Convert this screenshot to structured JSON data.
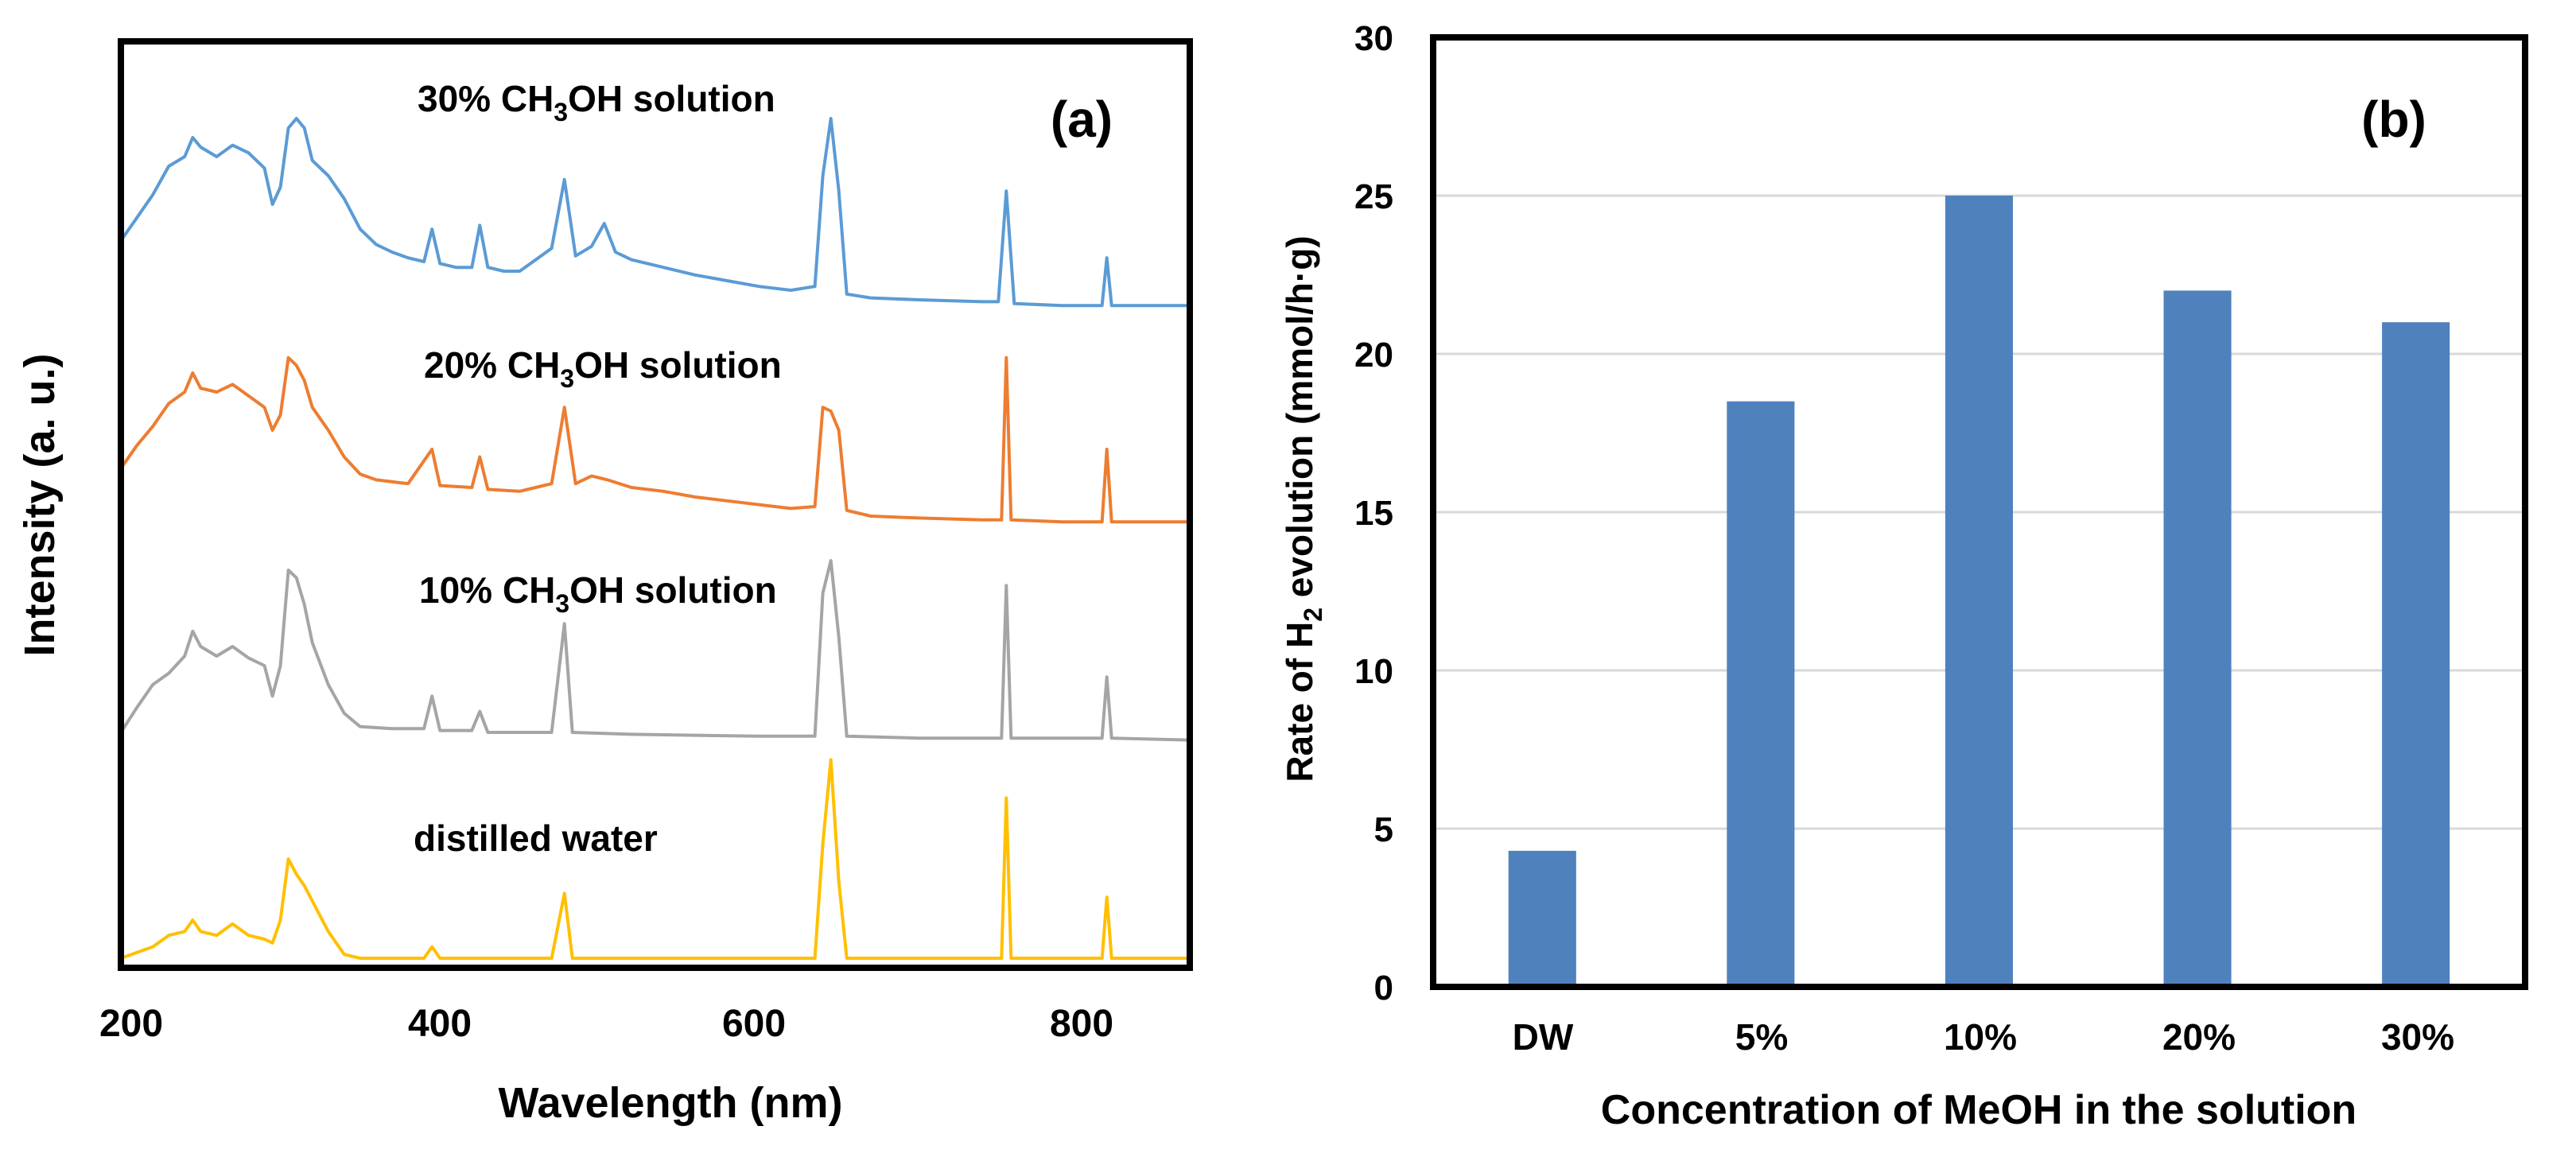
{
  "chart_data": [
    {
      "type": "line",
      "panel_label": "(a)",
      "xlabel": "Wavelength (nm)",
      "ylabel": "Intensity (a. u.)",
      "xlim": [
        200,
        870
      ],
      "x_ticks": [
        "200",
        "400",
        "600",
        "800"
      ],
      "y_ticks_shown": false,
      "colors": [
        "#5b9bd5",
        "#ed7d31",
        "#a5a5a5",
        "#ffc000"
      ],
      "series": [
        {
          "name": "30% CH3OH solution",
          "label_prefix": "30% CH",
          "label_sub": "3",
          "label_suffix": "OH solution",
          "offset": 3,
          "points": [
            [
              200,
              0.36
            ],
            [
              210,
              0.48
            ],
            [
              220,
              0.6
            ],
            [
              230,
              0.75
            ],
            [
              240,
              0.8
            ],
            [
              245,
              0.9
            ],
            [
              250,
              0.85
            ],
            [
              260,
              0.8
            ],
            [
              270,
              0.86
            ],
            [
              280,
              0.82
            ],
            [
              290,
              0.74
            ],
            [
              295,
              0.55
            ],
            [
              300,
              0.64
            ],
            [
              305,
              0.95
            ],
            [
              310,
              1.0
            ],
            [
              315,
              0.95
            ],
            [
              320,
              0.78
            ],
            [
              330,
              0.7
            ],
            [
              340,
              0.58
            ],
            [
              350,
              0.42
            ],
            [
              360,
              0.34
            ],
            [
              370,
              0.3
            ],
            [
              380,
              0.27
            ],
            [
              390,
              0.25
            ],
            [
              395,
              0.42
            ],
            [
              400,
              0.24
            ],
            [
              410,
              0.22
            ],
            [
              420,
              0.22
            ],
            [
              425,
              0.44
            ],
            [
              430,
              0.22
            ],
            [
              440,
              0.2
            ],
            [
              450,
              0.2
            ],
            [
              460,
              0.26
            ],
            [
              470,
              0.32
            ],
            [
              478,
              0.68
            ],
            [
              485,
              0.28
            ],
            [
              495,
              0.33
            ],
            [
              503,
              0.45
            ],
            [
              510,
              0.3
            ],
            [
              520,
              0.26
            ],
            [
              540,
              0.22
            ],
            [
              560,
              0.18
            ],
            [
              580,
              0.15
            ],
            [
              600,
              0.12
            ],
            [
              620,
              0.1
            ],
            [
              635,
              0.12
            ],
            [
              640,
              0.7
            ],
            [
              645,
              1.0
            ],
            [
              650,
              0.62
            ],
            [
              655,
              0.08
            ],
            [
              670,
              0.06
            ],
            [
              700,
              0.05
            ],
            [
              740,
              0.04
            ],
            [
              750,
              0.04
            ],
            [
              755,
              0.62
            ],
            [
              760,
              0.03
            ],
            [
              790,
              0.02
            ],
            [
              815,
              0.02
            ],
            [
              818,
              0.27
            ],
            [
              821,
              0.02
            ],
            [
              850,
              0.02
            ],
            [
              870,
              0.02
            ]
          ]
        },
        {
          "name": "20% CH3OH solution",
          "label_prefix": "20% CH",
          "label_sub": "3",
          "label_suffix": "OH solution",
          "offset": 2,
          "points": [
            [
              200,
              0.3
            ],
            [
              210,
              0.42
            ],
            [
              220,
              0.52
            ],
            [
              230,
              0.64
            ],
            [
              240,
              0.7
            ],
            [
              245,
              0.8
            ],
            [
              250,
              0.72
            ],
            [
              260,
              0.7
            ],
            [
              270,
              0.74
            ],
            [
              280,
              0.68
            ],
            [
              290,
              0.62
            ],
            [
              295,
              0.5
            ],
            [
              300,
              0.58
            ],
            [
              305,
              0.88
            ],
            [
              310,
              0.84
            ],
            [
              315,
              0.76
            ],
            [
              320,
              0.62
            ],
            [
              330,
              0.5
            ],
            [
              340,
              0.36
            ],
            [
              350,
              0.27
            ],
            [
              360,
              0.24
            ],
            [
              380,
              0.22
            ],
            [
              395,
              0.4
            ],
            [
              400,
              0.21
            ],
            [
              420,
              0.2
            ],
            [
              425,
              0.36
            ],
            [
              430,
              0.19
            ],
            [
              450,
              0.18
            ],
            [
              460,
              0.2
            ],
            [
              470,
              0.22
            ],
            [
              478,
              0.62
            ],
            [
              485,
              0.22
            ],
            [
              495,
              0.26
            ],
            [
              505,
              0.24
            ],
            [
              520,
              0.2
            ],
            [
              540,
              0.18
            ],
            [
              560,
              0.15
            ],
            [
              580,
              0.13
            ],
            [
              600,
              0.11
            ],
            [
              620,
              0.09
            ],
            [
              635,
              0.1
            ],
            [
              640,
              0.62
            ],
            [
              645,
              0.6
            ],
            [
              650,
              0.5
            ],
            [
              655,
              0.08
            ],
            [
              670,
              0.05
            ],
            [
              700,
              0.04
            ],
            [
              740,
              0.03
            ],
            [
              752,
              0.03
            ],
            [
              755,
              0.88
            ],
            [
              758,
              0.03
            ],
            [
              790,
              0.02
            ],
            [
              815,
              0.02
            ],
            [
              818,
              0.4
            ],
            [
              821,
              0.02
            ],
            [
              850,
              0.02
            ],
            [
              870,
              0.02
            ]
          ]
        },
        {
          "name": "10% CH3OH solution",
          "label_prefix": "10% CH",
          "label_sub": "3",
          "label_suffix": "OH solution",
          "offset": 1,
          "points": [
            [
              200,
              0.05
            ],
            [
              210,
              0.18
            ],
            [
              220,
              0.3
            ],
            [
              230,
              0.36
            ],
            [
              240,
              0.45
            ],
            [
              245,
              0.58
            ],
            [
              250,
              0.5
            ],
            [
              260,
              0.45
            ],
            [
              270,
              0.5
            ],
            [
              280,
              0.44
            ],
            [
              290,
              0.4
            ],
            [
              295,
              0.24
            ],
            [
              300,
              0.4
            ],
            [
              305,
              0.9
            ],
            [
              310,
              0.86
            ],
            [
              315,
              0.72
            ],
            [
              320,
              0.52
            ],
            [
              330,
              0.3
            ],
            [
              340,
              0.15
            ],
            [
              350,
              0.08
            ],
            [
              370,
              0.07
            ],
            [
              390,
              0.07
            ],
            [
              395,
              0.24
            ],
            [
              400,
              0.06
            ],
            [
              420,
              0.06
            ],
            [
              425,
              0.16
            ],
            [
              430,
              0.05
            ],
            [
              470,
              0.05
            ],
            [
              478,
              0.62
            ],
            [
              483,
              0.05
            ],
            [
              520,
              0.04
            ],
            [
              600,
              0.03
            ],
            [
              635,
              0.03
            ],
            [
              640,
              0.78
            ],
            [
              645,
              0.95
            ],
            [
              650,
              0.55
            ],
            [
              655,
              0.03
            ],
            [
              700,
              0.02
            ],
            [
              752,
              0.02
            ],
            [
              755,
              0.82
            ],
            [
              758,
              0.02
            ],
            [
              815,
              0.02
            ],
            [
              818,
              0.34
            ],
            [
              821,
              0.02
            ],
            [
              870,
              0.01
            ]
          ]
        },
        {
          "name": "distilled water",
          "label_prefix": "distilled water",
          "label_sub": "",
          "label_suffix": "",
          "offset": 0,
          "points": [
            [
              200,
              0.0
            ],
            [
              210,
              0.03
            ],
            [
              220,
              0.06
            ],
            [
              230,
              0.12
            ],
            [
              240,
              0.14
            ],
            [
              245,
              0.2
            ],
            [
              250,
              0.14
            ],
            [
              260,
              0.12
            ],
            [
              270,
              0.18
            ],
            [
              280,
              0.12
            ],
            [
              290,
              0.1
            ],
            [
              295,
              0.08
            ],
            [
              300,
              0.2
            ],
            [
              305,
              0.52
            ],
            [
              310,
              0.44
            ],
            [
              315,
              0.38
            ],
            [
              320,
              0.3
            ],
            [
              330,
              0.14
            ],
            [
              340,
              0.02
            ],
            [
              350,
              0.0
            ],
            [
              390,
              0.0
            ],
            [
              395,
              0.06
            ],
            [
              400,
              0.0
            ],
            [
              470,
              0.0
            ],
            [
              478,
              0.34
            ],
            [
              483,
              0.0
            ],
            [
              600,
              0.0
            ],
            [
              635,
              0.0
            ],
            [
              640,
              0.6
            ],
            [
              645,
              1.04
            ],
            [
              650,
              0.4
            ],
            [
              655,
              0.0
            ],
            [
              752,
              0.0
            ],
            [
              755,
              0.84
            ],
            [
              758,
              0.0
            ],
            [
              815,
              0.0
            ],
            [
              818,
              0.32
            ],
            [
              821,
              0.0
            ],
            [
              870,
              0.0
            ]
          ]
        }
      ]
    },
    {
      "type": "bar",
      "panel_label": "(b)",
      "xlabel": "Concentration of MeOH in the solution",
      "ylabel_prefix": "Rate of H",
      "ylabel_sub": "2",
      "ylabel_suffix": " evolution (mmol/h·g)",
      "categories": [
        "DW",
        "5%",
        "10%",
        "20%",
        "30%"
      ],
      "values": [
        4.3,
        18.5,
        25,
        22,
        21
      ],
      "ylim": [
        0,
        30
      ],
      "y_ticks": [
        "0",
        "5",
        "10",
        "15",
        "20",
        "25",
        "30"
      ],
      "grid": true,
      "color": "#4f81bd"
    }
  ]
}
